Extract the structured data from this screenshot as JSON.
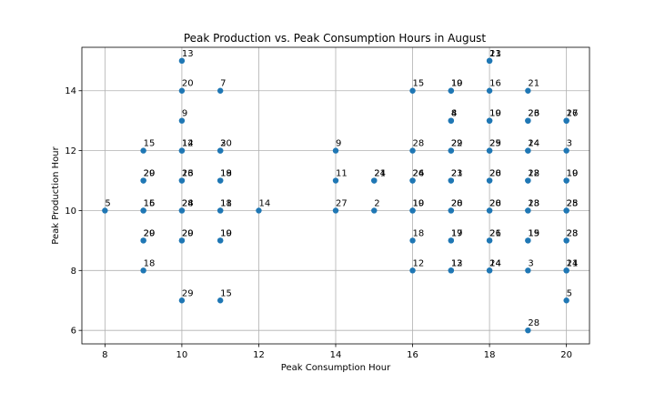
{
  "chart_data": {
    "type": "scatter",
    "title": "Peak Production vs. Peak Consumption Hours in August",
    "xlabel": "Peak Consumption Hour",
    "ylabel": "Peak Production Hour",
    "xlim": [
      7.4,
      20.6
    ],
    "ylim": [
      5.55,
      15.45
    ],
    "xticks": [
      8,
      10,
      12,
      14,
      16,
      18,
      20
    ],
    "yticks": [
      6,
      8,
      10,
      12,
      14
    ],
    "grid": true,
    "marker_color": "#1f77b4",
    "points": [
      {
        "x": 10,
        "y": 15,
        "label": "13"
      },
      {
        "x": 18,
        "y": 15,
        "label": "23"
      },
      {
        "x": 18,
        "y": 15,
        "label": "11"
      },
      {
        "x": 10,
        "y": 14,
        "label": "20"
      },
      {
        "x": 11,
        "y": 14,
        "label": "7"
      },
      {
        "x": 16,
        "y": 14,
        "label": "15"
      },
      {
        "x": 17,
        "y": 14,
        "label": "10"
      },
      {
        "x": 17,
        "y": 14,
        "label": "19"
      },
      {
        "x": 18,
        "y": 14,
        "label": "16"
      },
      {
        "x": 19,
        "y": 14,
        "label": "21"
      },
      {
        "x": 10,
        "y": 13,
        "label": "9"
      },
      {
        "x": 17,
        "y": 13,
        "label": "4"
      },
      {
        "x": 17,
        "y": 13,
        "label": "8"
      },
      {
        "x": 18,
        "y": 13,
        "label": "19"
      },
      {
        "x": 18,
        "y": 13,
        "label": "10"
      },
      {
        "x": 19,
        "y": 13,
        "label": "23"
      },
      {
        "x": 19,
        "y": 13,
        "label": "26"
      },
      {
        "x": 20,
        "y": 13,
        "label": "17"
      },
      {
        "x": 20,
        "y": 13,
        "label": "26"
      },
      {
        "x": 9,
        "y": 12,
        "label": "15"
      },
      {
        "x": 10,
        "y": 12,
        "label": "12"
      },
      {
        "x": 10,
        "y": 12,
        "label": "14"
      },
      {
        "x": 11,
        "y": 12,
        "label": "3"
      },
      {
        "x": 11,
        "y": 12,
        "label": "20"
      },
      {
        "x": 14,
        "y": 12,
        "label": "9"
      },
      {
        "x": 16,
        "y": 12,
        "label": "28"
      },
      {
        "x": 17,
        "y": 12,
        "label": "22"
      },
      {
        "x": 17,
        "y": 12,
        "label": "29"
      },
      {
        "x": 18,
        "y": 12,
        "label": "25"
      },
      {
        "x": 18,
        "y": 12,
        "label": "29"
      },
      {
        "x": 19,
        "y": 12,
        "label": "14"
      },
      {
        "x": 19,
        "y": 12,
        "label": "24"
      },
      {
        "x": 20,
        "y": 12,
        "label": "3"
      },
      {
        "x": 9,
        "y": 11,
        "label": "20"
      },
      {
        "x": 9,
        "y": 11,
        "label": "29"
      },
      {
        "x": 10,
        "y": 11,
        "label": "13"
      },
      {
        "x": 10,
        "y": 11,
        "label": "26"
      },
      {
        "x": 11,
        "y": 11,
        "label": "18"
      },
      {
        "x": 11,
        "y": 11,
        "label": "19"
      },
      {
        "x": 14,
        "y": 11,
        "label": "11"
      },
      {
        "x": 15,
        "y": 11,
        "label": "21"
      },
      {
        "x": 15,
        "y": 11,
        "label": "24"
      },
      {
        "x": 16,
        "y": 11,
        "label": "24"
      },
      {
        "x": 16,
        "y": 11,
        "label": "26"
      },
      {
        "x": 17,
        "y": 11,
        "label": "21"
      },
      {
        "x": 17,
        "y": 11,
        "label": "23"
      },
      {
        "x": 18,
        "y": 11,
        "label": "20"
      },
      {
        "x": 18,
        "y": 11,
        "label": "28"
      },
      {
        "x": 19,
        "y": 11,
        "label": "18"
      },
      {
        "x": 19,
        "y": 11,
        "label": "22"
      },
      {
        "x": 20,
        "y": 11,
        "label": "10"
      },
      {
        "x": 20,
        "y": 11,
        "label": "19"
      },
      {
        "x": 8,
        "y": 10,
        "label": "5"
      },
      {
        "x": 9,
        "y": 10,
        "label": "15"
      },
      {
        "x": 9,
        "y": 10,
        "label": "16"
      },
      {
        "x": 10,
        "y": 10,
        "label": "24"
      },
      {
        "x": 10,
        "y": 10,
        "label": "28"
      },
      {
        "x": 11,
        "y": 10,
        "label": "18"
      },
      {
        "x": 11,
        "y": 10,
        "label": "11"
      },
      {
        "x": 12,
        "y": 10,
        "label": "14"
      },
      {
        "x": 14,
        "y": 10,
        "label": "27"
      },
      {
        "x": 15,
        "y": 10,
        "label": "2"
      },
      {
        "x": 16,
        "y": 10,
        "label": "10"
      },
      {
        "x": 16,
        "y": 10,
        "label": "19"
      },
      {
        "x": 17,
        "y": 10,
        "label": "20"
      },
      {
        "x": 17,
        "y": 10,
        "label": "28"
      },
      {
        "x": 18,
        "y": 10,
        "label": "20"
      },
      {
        "x": 18,
        "y": 10,
        "label": "28"
      },
      {
        "x": 19,
        "y": 10,
        "label": "18"
      },
      {
        "x": 19,
        "y": 10,
        "label": "23"
      },
      {
        "x": 20,
        "y": 10,
        "label": "28"
      },
      {
        "x": 20,
        "y": 10,
        "label": "25"
      },
      {
        "x": 9,
        "y": 9,
        "label": "20"
      },
      {
        "x": 9,
        "y": 9,
        "label": "29"
      },
      {
        "x": 10,
        "y": 9,
        "label": "20"
      },
      {
        "x": 10,
        "y": 9,
        "label": "29"
      },
      {
        "x": 11,
        "y": 9,
        "label": "10"
      },
      {
        "x": 11,
        "y": 9,
        "label": "19"
      },
      {
        "x": 16,
        "y": 9,
        "label": "18"
      },
      {
        "x": 17,
        "y": 9,
        "label": "17"
      },
      {
        "x": 17,
        "y": 9,
        "label": "19"
      },
      {
        "x": 18,
        "y": 9,
        "label": "21"
      },
      {
        "x": 18,
        "y": 9,
        "label": "26"
      },
      {
        "x": 19,
        "y": 9,
        "label": "15"
      },
      {
        "x": 19,
        "y": 9,
        "label": "19"
      },
      {
        "x": 20,
        "y": 9,
        "label": "23"
      },
      {
        "x": 20,
        "y": 9,
        "label": "28"
      },
      {
        "x": 9,
        "y": 8,
        "label": "18"
      },
      {
        "x": 16,
        "y": 8,
        "label": "12"
      },
      {
        "x": 17,
        "y": 8,
        "label": "12"
      },
      {
        "x": 17,
        "y": 8,
        "label": "13"
      },
      {
        "x": 18,
        "y": 8,
        "label": "14"
      },
      {
        "x": 18,
        "y": 8,
        "label": "24"
      },
      {
        "x": 19,
        "y": 8,
        "label": "3"
      },
      {
        "x": 20,
        "y": 8,
        "label": "14"
      },
      {
        "x": 20,
        "y": 8,
        "label": "21"
      },
      {
        "x": 10,
        "y": 7,
        "label": "29"
      },
      {
        "x": 11,
        "y": 7,
        "label": "15"
      },
      {
        "x": 20,
        "y": 7,
        "label": "5"
      },
      {
        "x": 19,
        "y": 6,
        "label": "28"
      }
    ]
  }
}
